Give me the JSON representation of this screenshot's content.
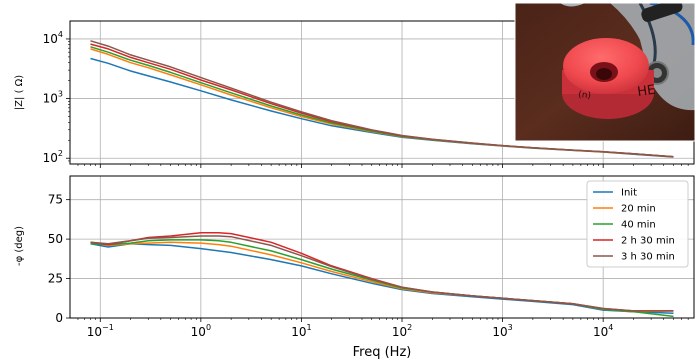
{
  "chart_data": [
    {
      "type": "line",
      "title": "",
      "xlabel": "",
      "ylabel": "|Z| ( Ω)",
      "xscale": "log",
      "yscale": "log",
      "xlim": [
        0.05,
        80000
      ],
      "ylim": [
        80,
        20000
      ],
      "grid": true,
      "xticks": [
        {
          "v": 0.1,
          "b": "10",
          "e": "−1"
        },
        {
          "v": 1,
          "b": "10",
          "e": "0"
        },
        {
          "v": 10,
          "b": "10",
          "e": "1"
        },
        {
          "v": 100,
          "b": "10",
          "e": "2"
        },
        {
          "v": 1000,
          "b": "10",
          "e": "3"
        },
        {
          "v": 10000,
          "b": "10",
          "e": "4"
        }
      ],
      "yticks": [
        {
          "v": 100,
          "b": "10",
          "e": "2"
        },
        {
          "v": 1000,
          "b": "10",
          "e": "3"
        },
        {
          "v": 10000,
          "b": "10",
          "e": "4"
        }
      ],
      "x": [
        0.08,
        0.12,
        0.2,
        0.3,
        0.5,
        1,
        2,
        5,
        10,
        20,
        50,
        100,
        200,
        500,
        1000,
        2000,
        5000,
        10000,
        20000,
        50000
      ],
      "series": [
        {
          "name": "Init",
          "color": "#1f77b4",
          "values": [
            4700,
            3900,
            2900,
            2400,
            1900,
            1350,
            950,
            620,
            460,
            350,
            270,
            225,
            200,
            175,
            160,
            148,
            135,
            127,
            117,
            105
          ]
        },
        {
          "name": "20 min",
          "color": "#ff7f0e",
          "values": [
            6800,
            5500,
            4000,
            3300,
            2500,
            1700,
            1150,
            700,
            500,
            375,
            280,
            230,
            203,
            177,
            161,
            149,
            136,
            127,
            118,
            106
          ]
        },
        {
          "name": "40 min",
          "color": "#2ca02c",
          "values": [
            7400,
            6000,
            4400,
            3600,
            2750,
            1850,
            1250,
            750,
            530,
            390,
            285,
            232,
            204,
            178,
            162,
            149,
            136,
            128,
            118,
            106
          ]
        },
        {
          "name": "2 h 30 min",
          "color": "#d62728",
          "values": [
            8200,
            6800,
            4900,
            4000,
            3100,
            2050,
            1400,
            820,
            570,
            410,
            295,
            237,
            207,
            179,
            163,
            150,
            137,
            128,
            119,
            106
          ]
        },
        {
          "name": "3 h 30 min",
          "color": "#8c564b",
          "values": [
            9300,
            7600,
            5400,
            4400,
            3400,
            2250,
            1500,
            870,
            600,
            425,
            300,
            240,
            208,
            180,
            163,
            150,
            137,
            128,
            119,
            106
          ]
        }
      ]
    },
    {
      "type": "line",
      "title": "",
      "xlabel": "Freq (Hz)",
      "ylabel": "-φ (deg)",
      "xscale": "log",
      "yscale": "linear",
      "xlim": [
        0.05,
        80000
      ],
      "ylim": [
        0,
        90
      ],
      "grid": true,
      "legend": "top-right",
      "xticks": [
        {
          "v": 0.1,
          "b": "10",
          "e": "−1"
        },
        {
          "v": 1,
          "b": "10",
          "e": "0"
        },
        {
          "v": 10,
          "b": "10",
          "e": "1"
        },
        {
          "v": 100,
          "b": "10",
          "e": "2"
        },
        {
          "v": 1000,
          "b": "10",
          "e": "3"
        },
        {
          "v": 10000,
          "b": "10",
          "e": "4"
        }
      ],
      "yticks": [
        {
          "v": 0,
          "label": "0"
        },
        {
          "v": 25,
          "label": "25"
        },
        {
          "v": 50,
          "label": "50"
        },
        {
          "v": 75,
          "label": "75"
        }
      ],
      "x": [
        0.08,
        0.12,
        0.2,
        0.3,
        0.5,
        1,
        1.5,
        2,
        5,
        10,
        20,
        50,
        100,
        200,
        500,
        1000,
        2000,
        5000,
        10000,
        20000,
        50000
      ],
      "series": [
        {
          "name": "Init",
          "color": "#1f77b4",
          "values": [
            47,
            45,
            47,
            46.5,
            46,
            44,
            42.5,
            41.5,
            37,
            33,
            28,
            22,
            18,
            15.5,
            13.5,
            12,
            10.5,
            8.5,
            5,
            4,
            3
          ]
        },
        {
          "name": "20 min",
          "color": "#ff7f0e",
          "values": [
            48,
            46,
            47,
            47.5,
            48,
            47.5,
            46.5,
            45.5,
            40,
            35,
            29.5,
            23,
            18.5,
            16,
            14,
            12.5,
            11,
            9,
            5.5,
            4,
            4.5
          ]
        },
        {
          "name": "40 min",
          "color": "#2ca02c",
          "values": [
            47,
            46.5,
            47.5,
            49,
            49.5,
            49.5,
            49,
            48,
            42.5,
            37,
            31,
            24,
            19,
            16.5,
            14,
            12.5,
            11,
            9,
            5.5,
            4,
            1
          ]
        },
        {
          "name": "2 h 30 min",
          "color": "#d62728",
          "values": [
            48,
            46.5,
            49,
            51,
            52,
            54,
            54,
            53.5,
            48,
            41,
            33,
            25,
            19.5,
            16.5,
            14,
            12.5,
            11,
            9,
            6,
            4.5,
            4.5
          ]
        },
        {
          "name": "3 h 30 min",
          "color": "#8c564b",
          "values": [
            48,
            47,
            49,
            50.5,
            51,
            52,
            52,
            51.5,
            46,
            39.5,
            32.5,
            24.5,
            19.5,
            16.5,
            14,
            12.5,
            11,
            9,
            6,
            4.5,
            4.5
          ]
        }
      ]
    }
  ],
  "photo": {
    "text_main": "HE",
    "text_small": "(n)"
  }
}
